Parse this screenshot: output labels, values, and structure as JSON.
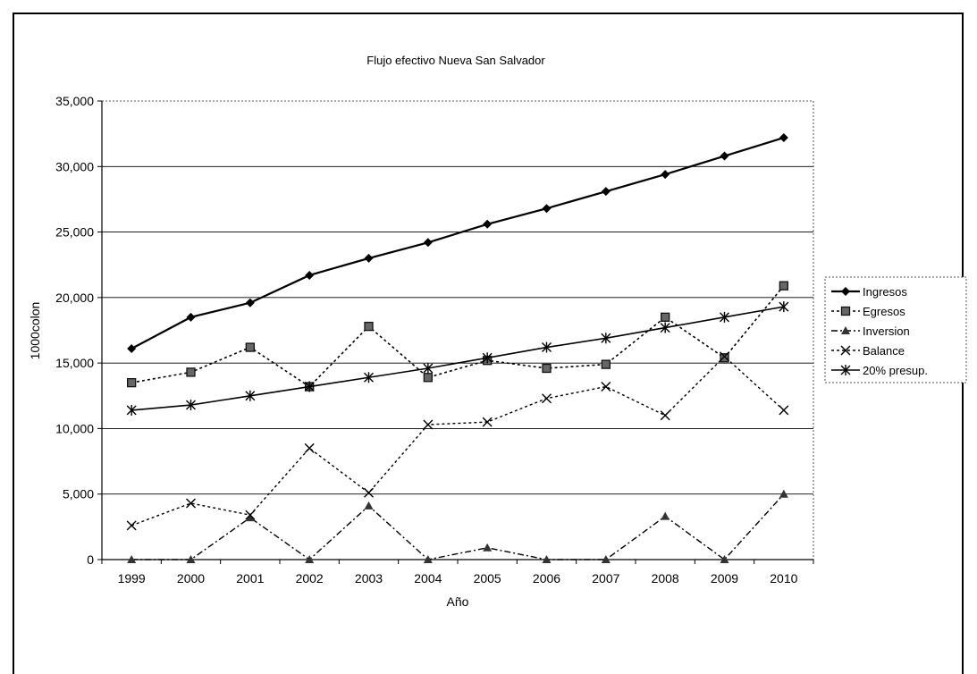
{
  "chart_data": {
    "type": "line",
    "title": "Flujo efectivo Nueva San Salvador",
    "xlabel": "Año",
    "ylabel": "1000colon",
    "ylim": [
      0,
      35000
    ],
    "yticks": [
      0,
      5000,
      10000,
      15000,
      20000,
      25000,
      30000,
      35000
    ],
    "ytick_labels": [
      "0",
      "5,000",
      "10,000",
      "15,000",
      "20,000",
      "25,000",
      "30,000",
      "35,000"
    ],
    "categories": [
      "1999",
      "2000",
      "2001",
      "2002",
      "2003",
      "2004",
      "2005",
      "2006",
      "2007",
      "2008",
      "2009",
      "2010"
    ],
    "grid": true,
    "legend_position": "right",
    "series": [
      {
        "name": "Ingresos",
        "marker": "diamond",
        "dash": "solid",
        "stroke_width": 2.2,
        "values": [
          16100,
          18500,
          19600,
          21700,
          23000,
          24200,
          25600,
          26800,
          28100,
          29400,
          30800,
          32200
        ]
      },
      {
        "name": "Egresos",
        "marker": "square",
        "dash": "dotted",
        "stroke_width": 1.6,
        "values": [
          13500,
          14300,
          16200,
          13200,
          17800,
          13900,
          15200,
          14600,
          14900,
          18500,
          15400,
          20900
        ]
      },
      {
        "name": "Inversion",
        "marker": "triangle",
        "dash": "dashdot",
        "stroke_width": 1.4,
        "values": [
          0,
          0,
          3200,
          0,
          4100,
          0,
          900,
          0,
          0,
          3300,
          0,
          5000
        ]
      },
      {
        "name": "Balance",
        "marker": "x",
        "dash": "dotted",
        "stroke_width": 1.4,
        "values": [
          2600,
          4300,
          3400,
          8500,
          5100,
          10300,
          10500,
          12300,
          13200,
          11000,
          15500,
          11400
        ]
      },
      {
        "name": "20% presup.",
        "marker": "star",
        "dash": "solid",
        "stroke_width": 1.6,
        "values": [
          11400,
          11800,
          12500,
          13200,
          13900,
          14600,
          15400,
          16200,
          16900,
          17700,
          18500,
          19300
        ]
      }
    ]
  }
}
